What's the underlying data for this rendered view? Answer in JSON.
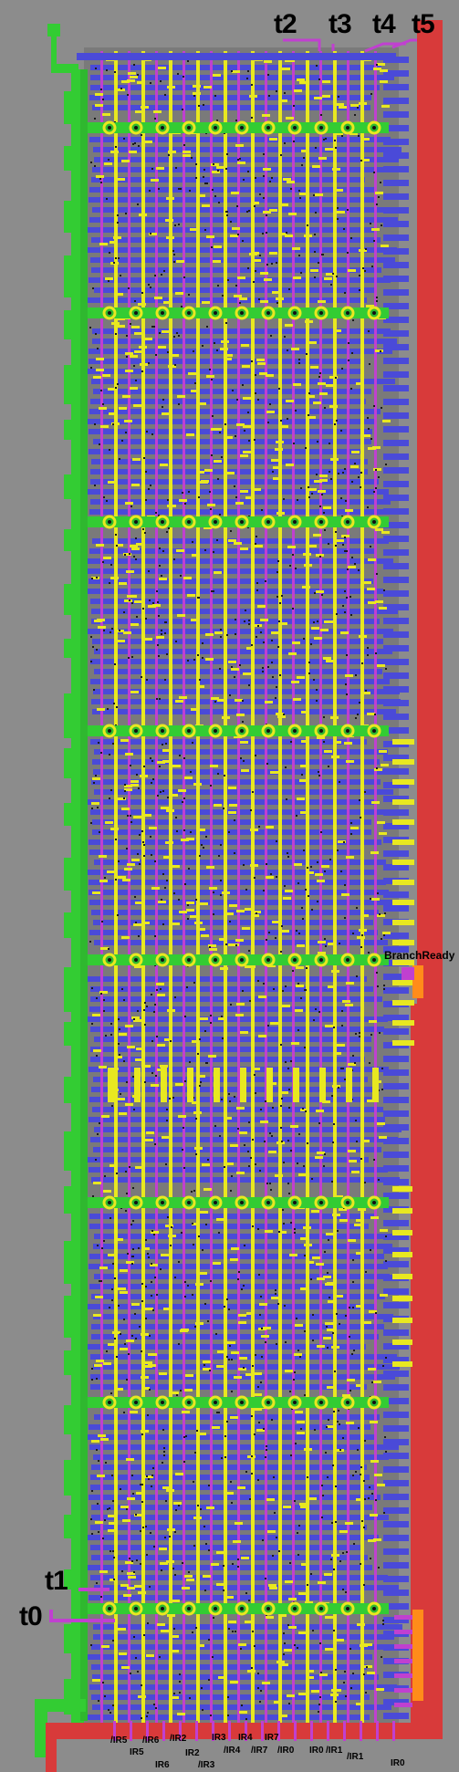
{
  "signals": {
    "t0": "t0",
    "t1": "t1",
    "t2": "t2",
    "t3": "t3",
    "t4": "t4",
    "t5": "t5",
    "branch_ready": "BranchReady"
  },
  "bottom_labels": [
    "/IR5",
    "IR5",
    "/IR6",
    "IR6",
    "/IR2",
    "IR2",
    "/IR3",
    "IR3",
    "/IR4",
    "IR4",
    "/IR7",
    "IR7",
    "/IR0",
    "IR0",
    "/IR1",
    "/IR1",
    "IR0"
  ],
  "colors": {
    "background": "#8c8c8c",
    "metal1": "#4a4ad8",
    "metal2": "#c040d0",
    "poly": "#e8e820",
    "diffusion": "#33cc33",
    "vdd_rail": "#d83a3a",
    "output": "#ff8c1a"
  }
}
